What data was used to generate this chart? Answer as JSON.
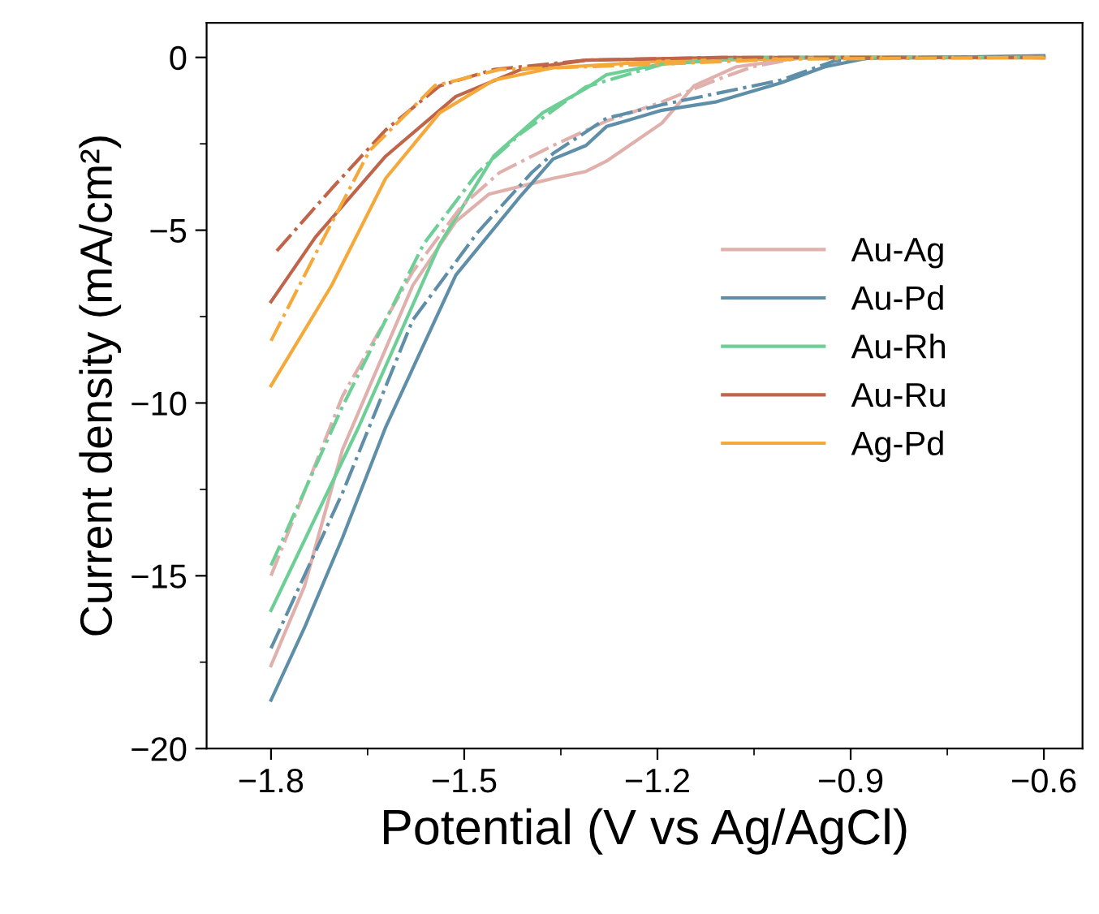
{
  "chart_data": {
    "type": "line",
    "xlabel": "Potential (V vs Ag/AgCl)",
    "ylabel": "Current density (mA/cm²)",
    "xlim": [
      -1.9,
      -0.54
    ],
    "ylim": [
      -20,
      1
    ],
    "xticks": [
      {
        "value": -1.8,
        "label": "−1.8"
      },
      {
        "value": -1.5,
        "label": "−1.5"
      },
      {
        "value": -1.2,
        "label": "−1.2"
      },
      {
        "value": -0.9,
        "label": "−0.9"
      },
      {
        "value": -0.6,
        "label": "−0.6"
      }
    ],
    "yticks": [
      {
        "value": -20,
        "label": "−20"
      },
      {
        "value": -15,
        "label": "−15"
      },
      {
        "value": -10,
        "label": "−10"
      },
      {
        "value": -5,
        "label": "−5"
      },
      0
    ],
    "grid": false,
    "legend": "right",
    "marker": "none",
    "series": [
      {
        "name": "Au-Ag",
        "color": "#e0b0ac",
        "line_style": "solid",
        "x": [
          -1.8,
          -1.748,
          -1.689,
          -1.58,
          -1.513,
          -1.462,
          -1.395,
          -1.362,
          -1.311,
          -1.279,
          -1.193,
          -1.143,
          -1.077,
          -0.984,
          -0.9,
          -0.6
        ],
        "values": [
          -17.6,
          -15.3,
          -11.35,
          -6.6,
          -4.75,
          -3.96,
          -3.65,
          -3.5,
          -3.3,
          -3.0,
          -1.9,
          -0.82,
          -0.27,
          -0.03,
          0,
          0
        ]
      },
      {
        "name": "Au-Pd",
        "color": "#5f8fa8",
        "line_style": "solid",
        "x": [
          -1.8,
          -1.748,
          -1.689,
          -1.622,
          -1.513,
          -1.412,
          -1.362,
          -1.311,
          -1.279,
          -1.193,
          -1.11,
          -1.009,
          -0.94,
          -0.876,
          -0.6
        ],
        "values": [
          -18.6,
          -16.5,
          -13.9,
          -10.7,
          -6.3,
          -4.0,
          -2.94,
          -2.55,
          -2.0,
          -1.53,
          -1.29,
          -0.74,
          -0.27,
          -0.03,
          0.05
        ]
      },
      {
        "name": "Au-Rh",
        "color": "#6dcf95",
        "line_style": "solid",
        "x": [
          -1.8,
          -1.664,
          -1.538,
          -1.454,
          -1.378,
          -1.311,
          -1.279,
          -1.193,
          -1.11,
          -1.0,
          -0.6
        ],
        "values": [
          -16.0,
          -10.7,
          -5.4,
          -2.85,
          -1.6,
          -0.9,
          -0.5,
          -0.19,
          -0.03,
          0,
          0
        ]
      },
      {
        "name": "Au-Ru",
        "color": "#c0644a",
        "line_style": "solid",
        "x": [
          -1.8,
          -1.731,
          -1.622,
          -1.513,
          -1.412,
          -1.311,
          -1.1,
          -0.6
        ],
        "values": [
          -7.07,
          -5.2,
          -2.86,
          -1.13,
          -0.35,
          -0.08,
          0,
          0
        ]
      },
      {
        "name": "Ag-Pd",
        "color": "#f5a93a",
        "line_style": "solid",
        "x": [
          -1.8,
          -1.706,
          -1.622,
          -1.538,
          -1.454,
          -1.362,
          -1.193,
          -0.9,
          -0.6
        ],
        "values": [
          -9.5,
          -6.6,
          -3.5,
          -1.6,
          -0.66,
          -0.3,
          -0.11,
          0,
          -0.02
        ]
      },
      {
        "color": "#e0b0ac",
        "line_style": "dashdot",
        "x": [
          -1.8,
          -1.689,
          -1.58,
          -1.504,
          -1.445,
          -1.362,
          -1.279,
          -1.193,
          -1.11,
          -1.052,
          -0.984,
          -0.6
        ],
        "values": [
          -15.0,
          -9.8,
          -6.2,
          -4.3,
          -3.33,
          -2.55,
          -1.84,
          -1.29,
          -0.66,
          -0.27,
          -0.03,
          0
        ]
      },
      {
        "color": "#5f8fa8",
        "line_style": "dashdot",
        "x": [
          -1.8,
          -1.689,
          -1.58,
          -1.479,
          -1.395,
          -1.362,
          -1.279,
          -1.193,
          -1.11,
          -1.009,
          -0.925,
          -0.85,
          -0.6
        ],
        "values": [
          -17.1,
          -12.6,
          -7.6,
          -5.06,
          -3.33,
          -2.78,
          -1.76,
          -1.37,
          -1.05,
          -0.66,
          -0.1,
          0,
          0
        ]
      },
      {
        "color": "#6dcf95",
        "line_style": "dashdot",
        "x": [
          -1.8,
          -1.689,
          -1.563,
          -1.479,
          -1.412,
          -1.311,
          -1.193,
          -1.05,
          -0.6
        ],
        "values": [
          -14.7,
          -10.1,
          -5.4,
          -3.33,
          -2.2,
          -0.85,
          -0.2,
          0,
          0
        ]
      },
      {
        "color": "#c0644a",
        "line_style": "dashdot",
        "x": [
          -1.791,
          -1.706,
          -1.622,
          -1.538,
          -1.454,
          -1.311,
          -1.1,
          -0.6
        ],
        "values": [
          -5.6,
          -3.8,
          -2.1,
          -0.82,
          -0.35,
          -0.08,
          0,
          0
        ]
      },
      {
        "color": "#f5a93a",
        "line_style": "dashdot",
        "x": [
          -1.8,
          -1.723,
          -1.647,
          -1.546,
          -1.445,
          -1.311,
          -1.0,
          -0.6
        ],
        "values": [
          -8.2,
          -5.4,
          -2.7,
          -0.82,
          -0.35,
          -0.27,
          -0.05,
          0
        ]
      }
    ]
  }
}
